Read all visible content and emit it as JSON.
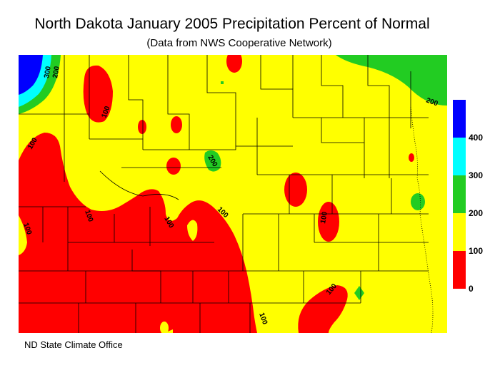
{
  "title": "North Dakota January 2005 Precipitation Percent of Normal",
  "subtitle": "(Data from NWS Cooperative Network)",
  "footer": "ND State Climate Office",
  "legend": {
    "labels": [
      "400",
      "300",
      "200",
      "100",
      "0"
    ],
    "colors": {
      "0-100": "#ff0000",
      "100-200": "#ffff00",
      "200-300": "#22cc22",
      "300-400": "#00ffff",
      "400+": "#0000ff"
    }
  },
  "contour_labels": [
    "300",
    "200",
    "100",
    "200",
    "100",
    "100",
    "100",
    "100",
    "100",
    "100",
    "100",
    "100",
    "200"
  ]
}
